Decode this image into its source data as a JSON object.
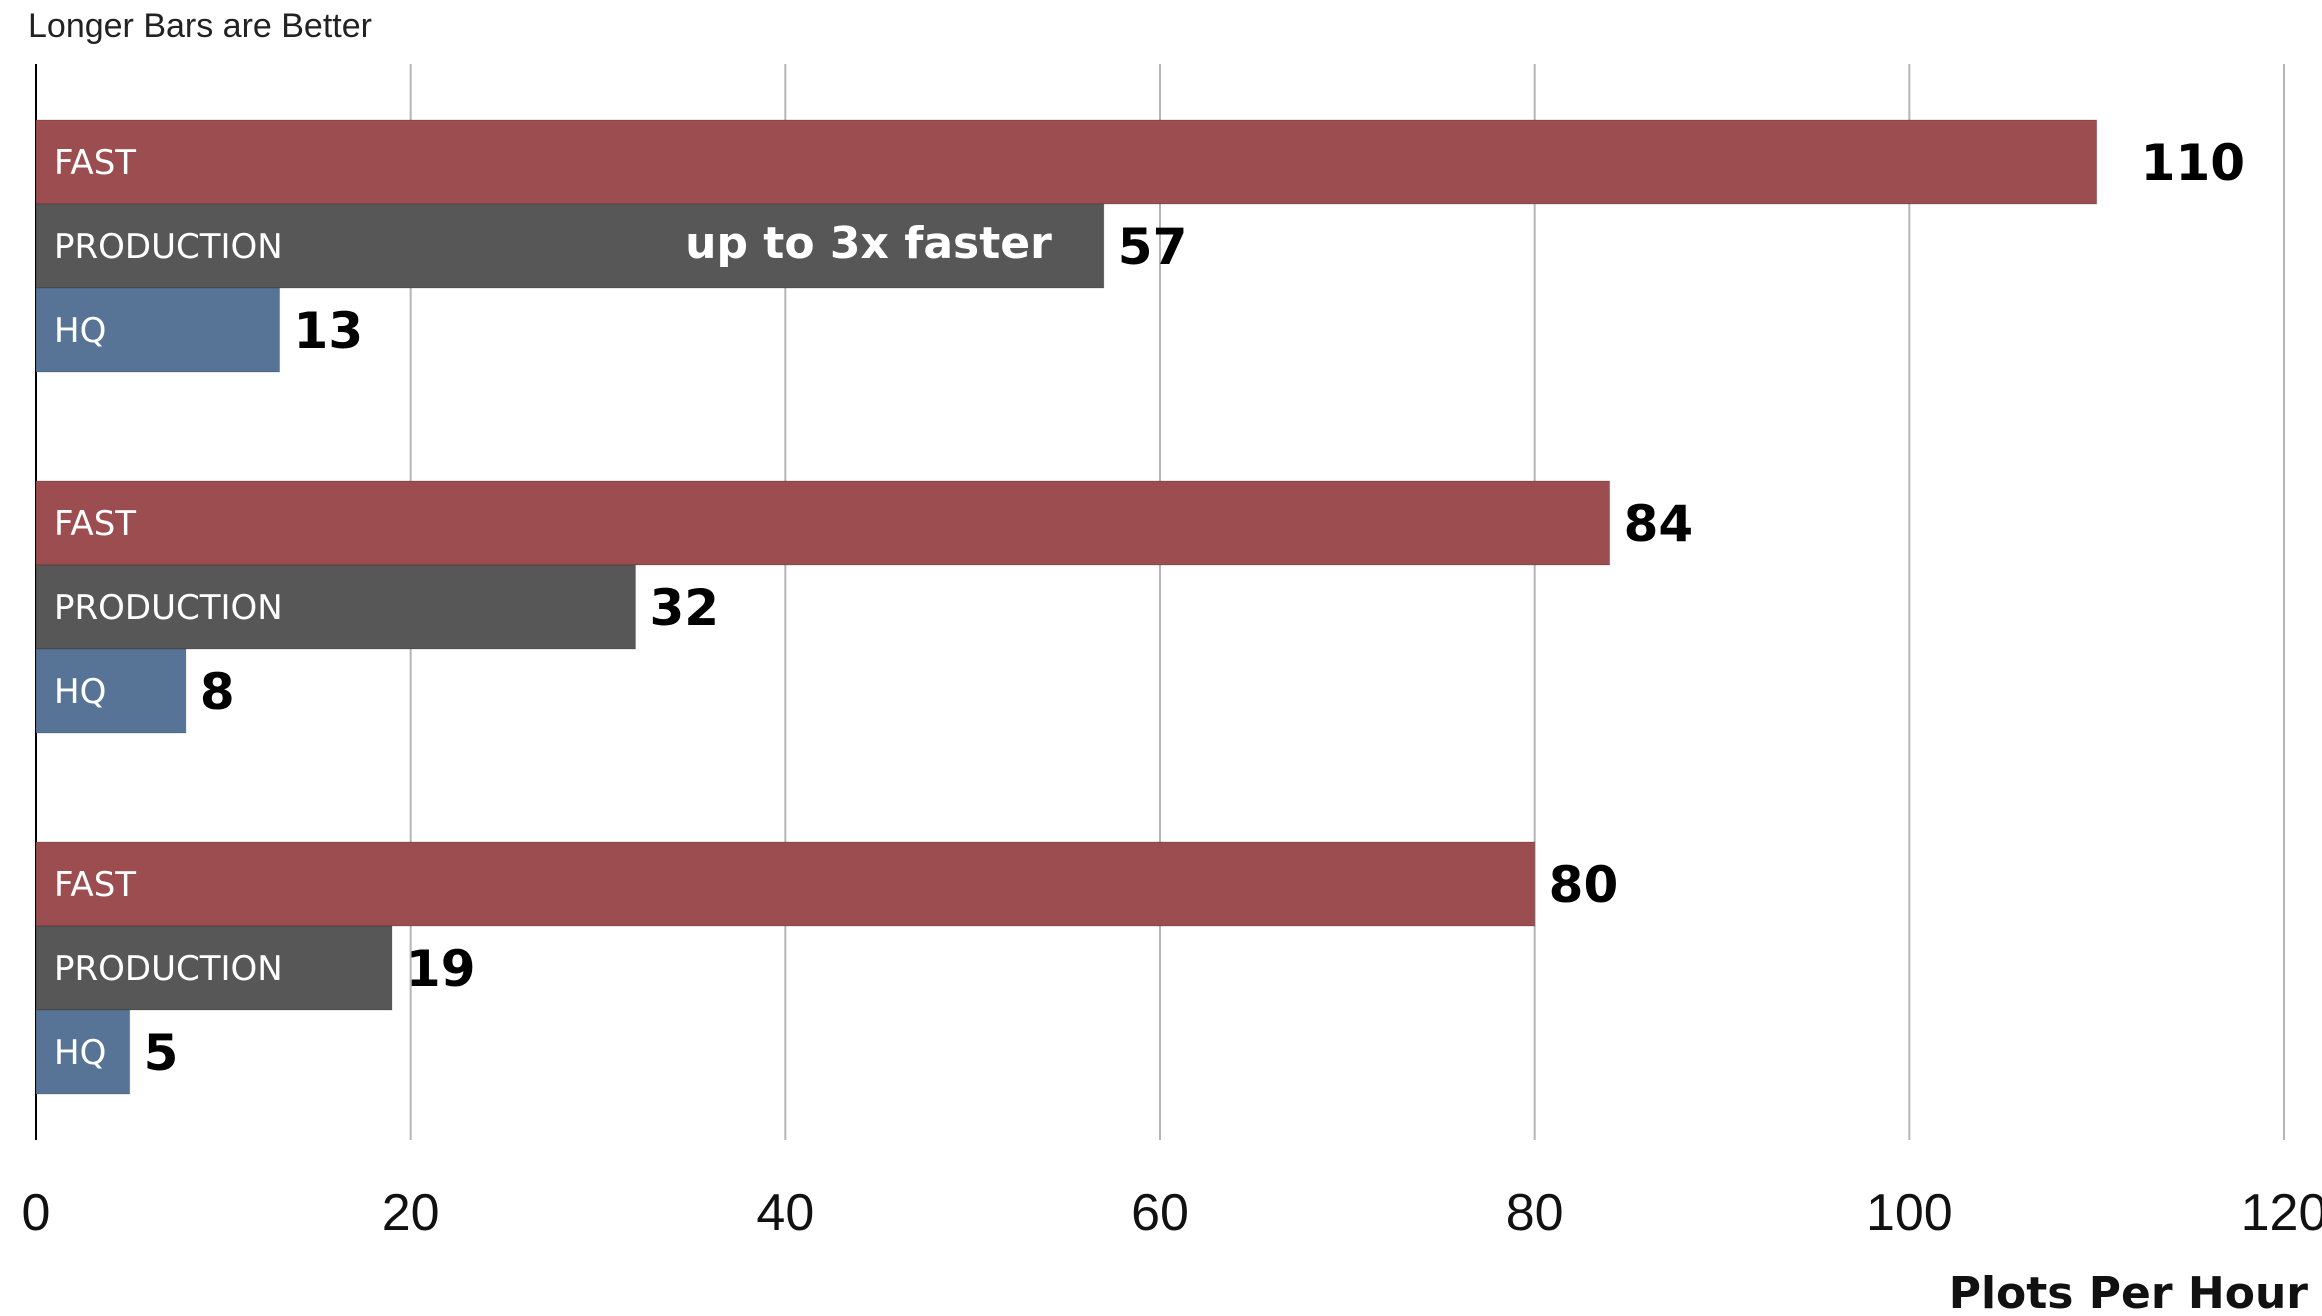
{
  "chart_data": {
    "type": "bar",
    "orientation": "horizontal",
    "subtitle": "Longer Bars are Better",
    "xlabel": "Plots Per Hour",
    "xlim": [
      0,
      120
    ],
    "xticks": [
      "0",
      "20",
      "40",
      "60",
      "80",
      "100",
      "120"
    ],
    "grid": true,
    "groups": [
      {
        "bars": [
          {
            "label": "FAST",
            "value": 110,
            "color": "#9b4d50"
          },
          {
            "label": "PRODUCTION",
            "value": 57,
            "color": "#575757"
          },
          {
            "label": "HQ",
            "value": 13,
            "color": "#577496"
          }
        ]
      },
      {
        "bars": [
          {
            "label": "FAST",
            "value": 84,
            "color": "#9b4d50"
          },
          {
            "label": "PRODUCTION",
            "value": 32,
            "color": "#575757"
          },
          {
            "label": "HQ",
            "value": 8,
            "color": "#577496"
          }
        ]
      },
      {
        "bars": [
          {
            "label": "FAST",
            "value": 80,
            "color": "#9b4d50"
          },
          {
            "label": "PRODUCTION",
            "value": 19,
            "color": "#575757"
          },
          {
            "label": "HQ",
            "value": 5,
            "color": "#577496"
          }
        ]
      }
    ],
    "annotations": [
      {
        "text": "up to 3x faster",
        "group": 0,
        "bar": 1
      }
    ]
  }
}
